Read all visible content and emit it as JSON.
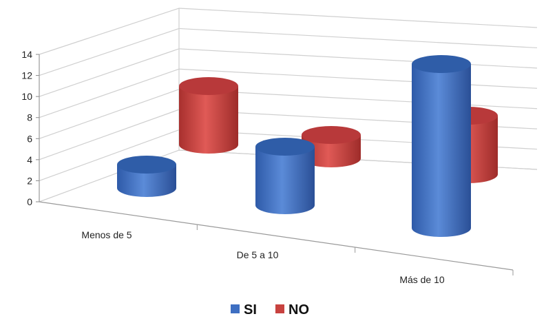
{
  "chart_data": {
    "type": "bar",
    "style": "3d-cylinder",
    "categories": [
      "Menos de 5",
      "De 5 a 10",
      "Más de 10"
    ],
    "series": [
      {
        "name": "SI",
        "values": [
          2,
          5,
          14
        ],
        "color": "#3E6FC2"
      },
      {
        "name": "NO",
        "values": [
          5,
          2,
          5
        ],
        "color": "#C8423F"
      }
    ],
    "yticks": [
      "0",
      "2",
      "4",
      "6",
      "8",
      "10",
      "12",
      "14"
    ],
    "ylim": [
      0,
      14
    ],
    "grid": true,
    "legend_position": "bottom"
  }
}
